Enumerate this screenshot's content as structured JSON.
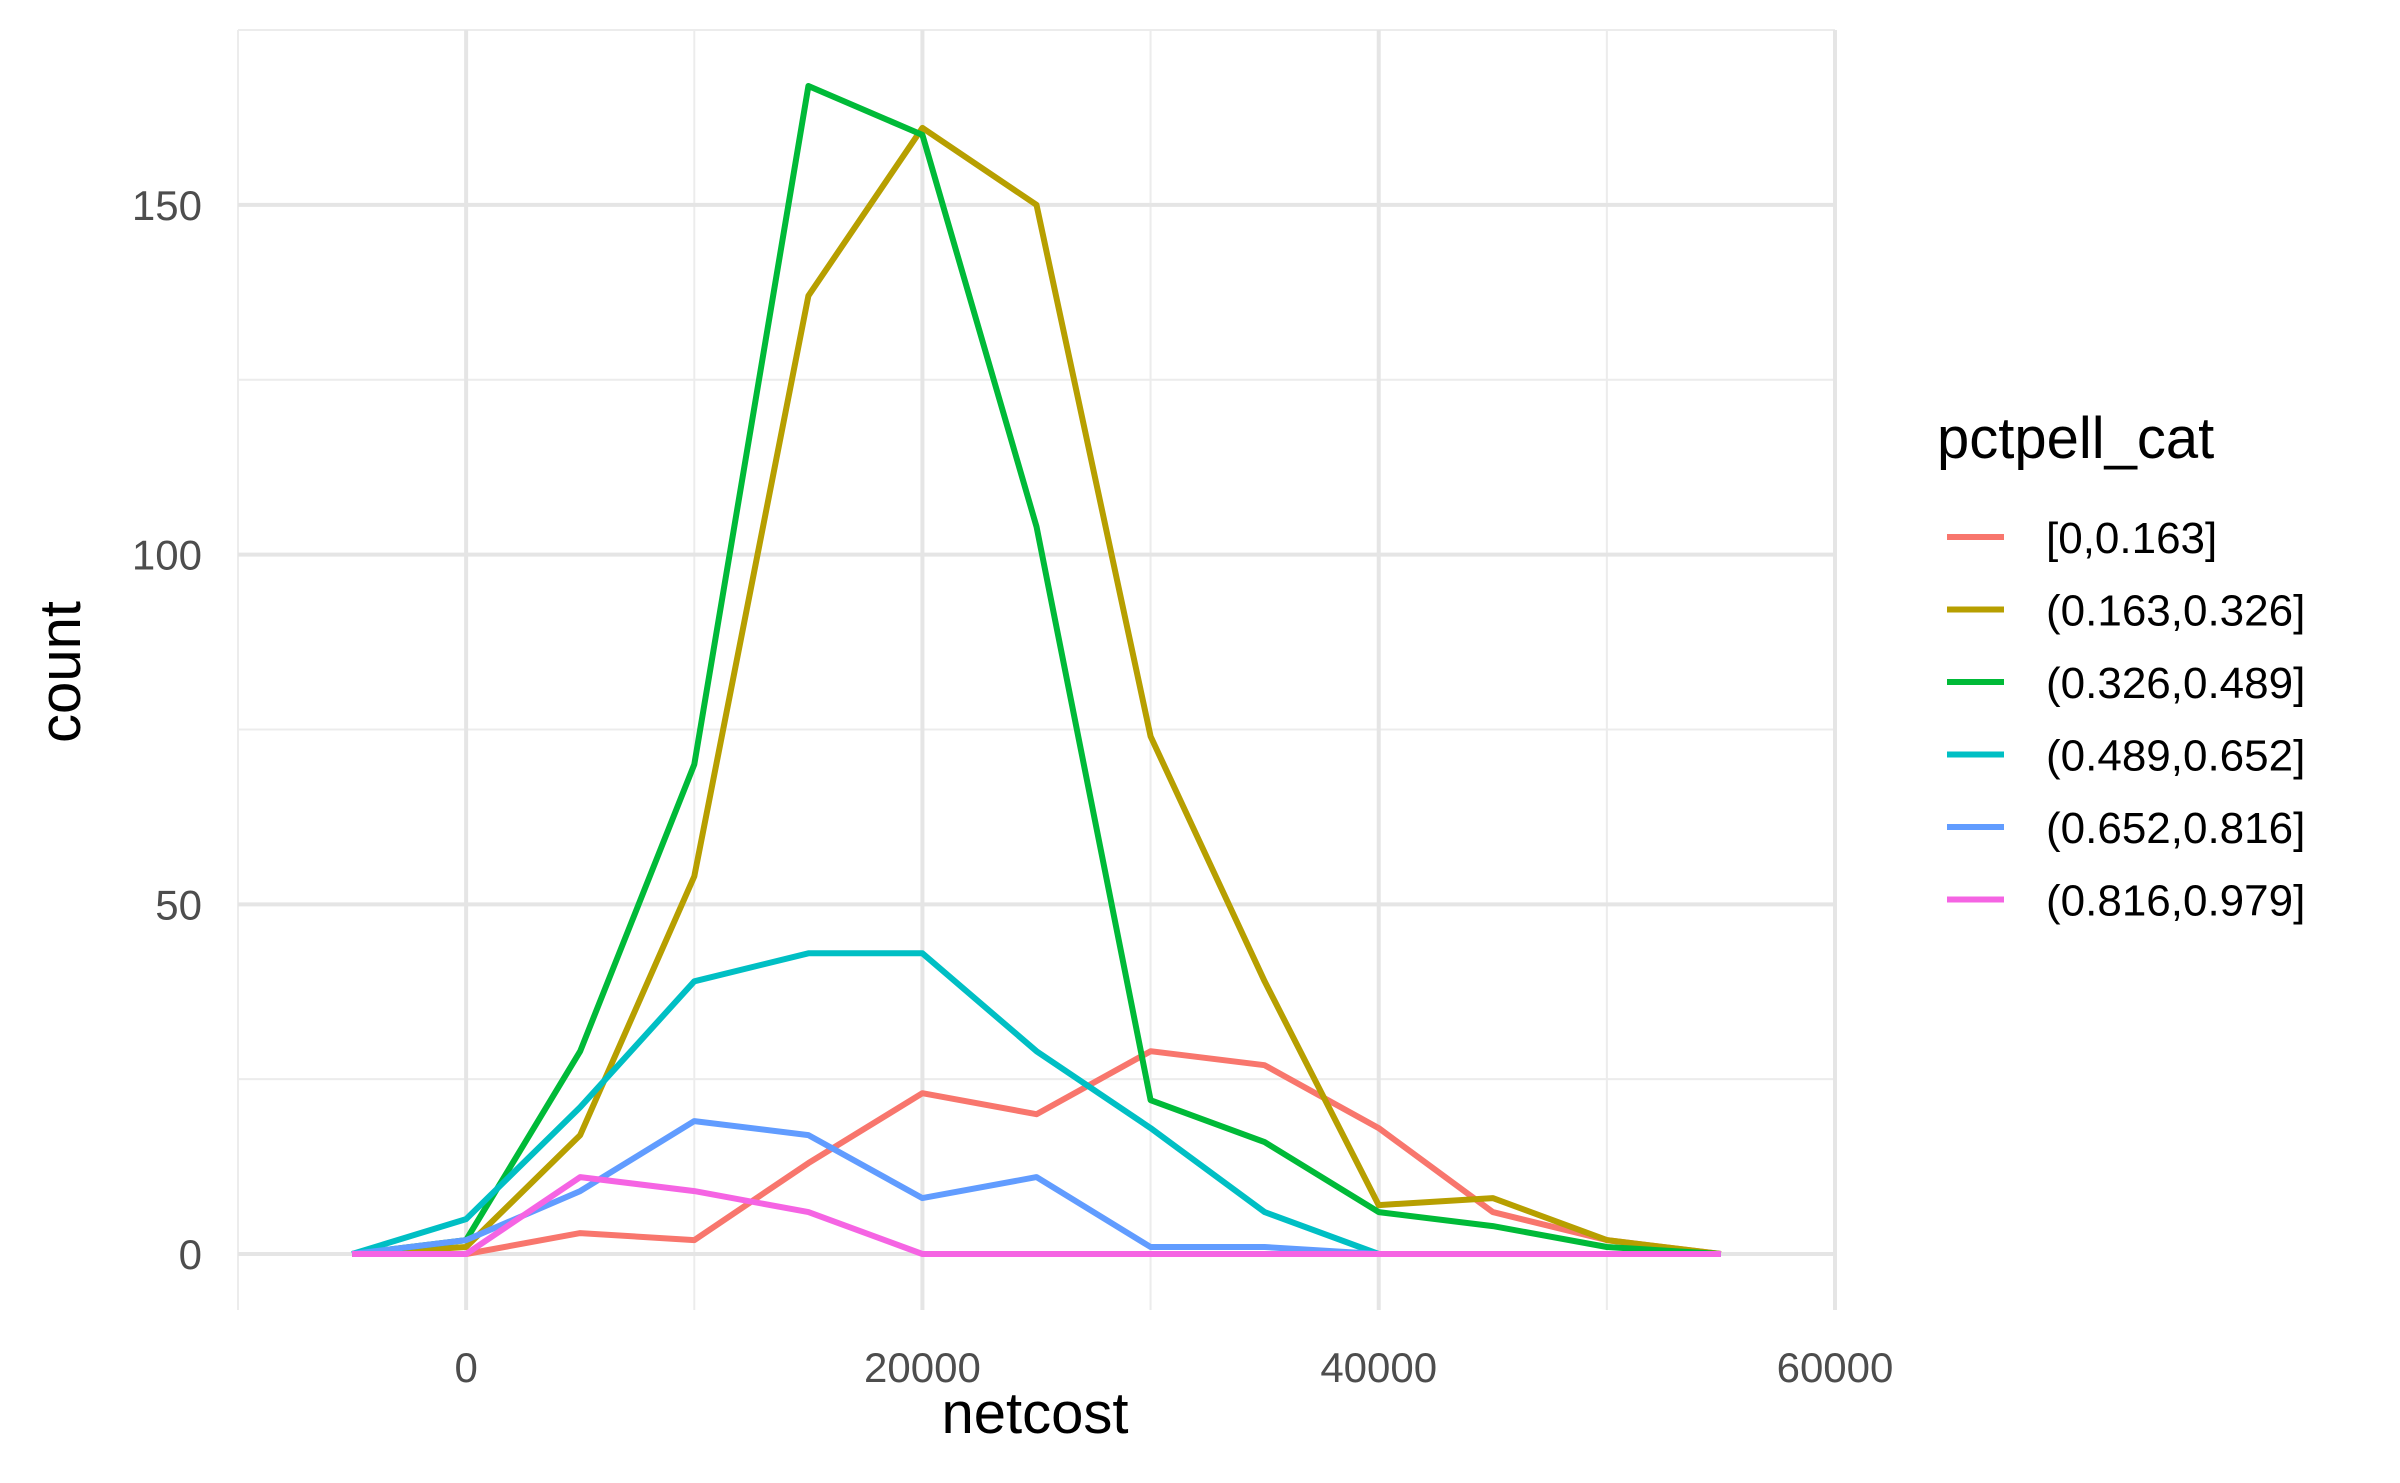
{
  "chart_data": {
    "type": "line",
    "title": "",
    "xlabel": "netcost",
    "ylabel": "count",
    "xlim": [
      -10000,
      60000
    ],
    "ylim": [
      -8,
      175
    ],
    "x_ticks": [
      0,
      20000,
      40000,
      60000
    ],
    "x_tick_labels": [
      "0",
      "20000",
      "40000",
      "60000"
    ],
    "y_ticks": [
      0,
      50,
      100,
      150
    ],
    "y_tick_labels": [
      "0",
      "50",
      "100",
      "150"
    ],
    "grid": true,
    "legend": {
      "title": "pctpell_cat",
      "position": "right"
    },
    "x": [
      -5000,
      0,
      5000,
      10000,
      15000,
      20000,
      25000,
      30000,
      35000,
      40000,
      45000,
      50000,
      55000
    ],
    "series": [
      {
        "name": "[0,0.163]",
        "color": "#F8766D",
        "values": [
          0,
          0,
          3,
          2,
          13,
          23,
          20,
          29,
          27,
          18,
          6,
          2,
          0
        ]
      },
      {
        "name": "(0.163,0.326]",
        "color": "#B79F00",
        "values": [
          0,
          1,
          17,
          54,
          137,
          161,
          150,
          74,
          39,
          7,
          8,
          2,
          0
        ]
      },
      {
        "name": "(0.326,0.489]",
        "color": "#00BA38",
        "values": [
          0,
          2,
          29,
          70,
          167,
          160,
          104,
          22,
          16,
          6,
          4,
          1,
          0
        ]
      },
      {
        "name": "(0.489,0.652]",
        "color": "#00BFC4",
        "values": [
          0,
          5,
          21,
          39,
          43,
          43,
          29,
          18,
          6,
          0,
          0,
          0,
          0
        ]
      },
      {
        "name": "(0.652,0.816]",
        "color": "#619CFF",
        "values": [
          0,
          2,
          9,
          19,
          17,
          8,
          11,
          1,
          1,
          0,
          0,
          0,
          0
        ]
      },
      {
        "name": "(0.816,0.979]",
        "color": "#F564E3",
        "values": [
          0,
          0,
          11,
          9,
          6,
          0,
          0,
          0,
          0,
          0,
          0,
          0,
          0
        ]
      }
    ]
  }
}
